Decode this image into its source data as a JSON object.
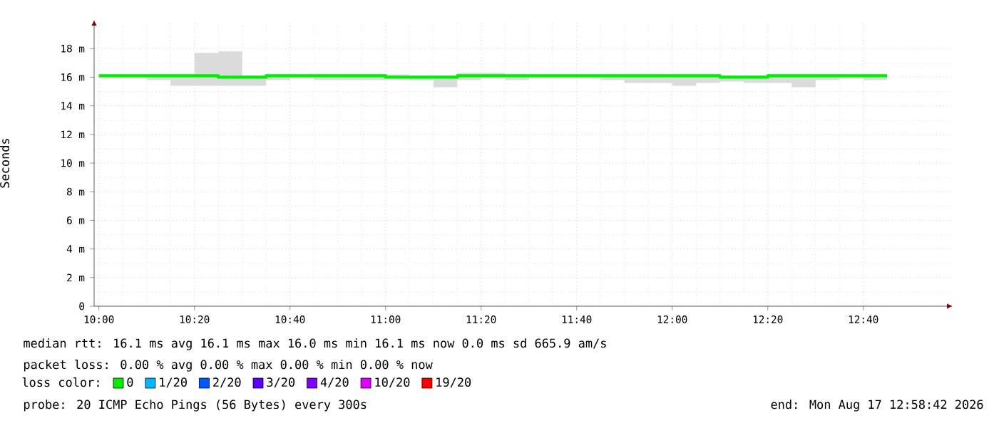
{
  "chart_data": {
    "type": "step",
    "ylabel": "Seconds",
    "legend_title": "loss color:",
    "legend": "bottom",
    "grid": true,
    "x": [
      "2026-08-17T10:00",
      "2026-08-17T10:05",
      "2026-08-17T10:10",
      "2026-08-17T10:15",
      "2026-08-17T10:20",
      "2026-08-17T10:25",
      "2026-08-17T10:30",
      "2026-08-17T10:35",
      "2026-08-17T10:40",
      "2026-08-17T10:45",
      "2026-08-17T10:50",
      "2026-08-17T10:55",
      "2026-08-17T11:00",
      "2026-08-17T11:05",
      "2026-08-17T11:10",
      "2026-08-17T11:15",
      "2026-08-17T11:20",
      "2026-08-17T11:25",
      "2026-08-17T11:30",
      "2026-08-17T11:35",
      "2026-08-17T11:40",
      "2026-08-17T11:45",
      "2026-08-17T11:50",
      "2026-08-17T11:55",
      "2026-08-17T12:00",
      "2026-08-17T12:05",
      "2026-08-17T12:10",
      "2026-08-17T12:15",
      "2026-08-17T12:20",
      "2026-08-17T12:25",
      "2026-08-17T12:30",
      "2026-08-17T12:35",
      "2026-08-17T12:40",
      "2026-08-17T12:45"
    ],
    "series": [
      {
        "name": "0",
        "color": "#00ee00",
        "values": [
          16.1,
          16.1,
          16.1,
          16.1,
          16.1,
          16.0,
          16.0,
          16.1,
          16.1,
          16.1,
          16.1,
          16.1,
          16.0,
          16.0,
          16.0,
          16.1,
          16.1,
          16.1,
          16.1,
          16.1,
          16.1,
          16.1,
          16.1,
          16.1,
          16.1,
          16.1,
          16.0,
          16.0,
          16.1,
          16.1,
          16.1,
          16.1,
          16.1,
          16.1
        ],
        "lower": [
          16.0,
          16.0,
          15.8,
          15.4,
          15.4,
          15.4,
          15.4,
          15.8,
          16.0,
          15.8,
          15.8,
          15.8,
          15.9,
          15.8,
          15.3,
          15.8,
          16.0,
          15.8,
          16.0,
          16.0,
          16.0,
          15.8,
          15.6,
          15.6,
          15.4,
          15.6,
          15.7,
          15.6,
          15.6,
          15.3,
          15.8,
          16.0,
          15.8,
          15.8
        ],
        "upper": [
          16.2,
          16.2,
          16.2,
          16.2,
          17.7,
          17.8,
          16.1,
          16.2,
          16.2,
          16.2,
          16.2,
          16.2,
          16.2,
          16.1,
          16.1,
          16.3,
          16.3,
          16.2,
          16.2,
          16.2,
          16.2,
          16.2,
          16.2,
          16.2,
          16.2,
          16.2,
          16.1,
          16.1,
          16.2,
          16.2,
          16.2,
          16.2,
          16.2,
          17.1
        ]
      },
      {
        "name": "1/20",
        "color": "#00b8ff",
        "values": [
          null,
          null,
          null,
          null,
          null,
          null,
          null,
          null,
          null,
          null,
          null,
          null,
          null,
          null,
          null,
          null,
          null,
          null,
          null,
          null,
          null,
          null,
          null,
          null,
          null,
          null,
          null,
          null,
          null,
          null,
          null,
          null,
          null,
          null
        ]
      },
      {
        "name": "2/20",
        "color": "#0059ff",
        "values": [
          null,
          null,
          null,
          null,
          null,
          null,
          null,
          null,
          null,
          null,
          null,
          null,
          null,
          null,
          null,
          null,
          null,
          null,
          null,
          null,
          null,
          null,
          null,
          null,
          null,
          null,
          null,
          null,
          null,
          null,
          null,
          null,
          null,
          null
        ]
      },
      {
        "name": "3/20",
        "color": "#5e00ff",
        "values": [
          null,
          null,
          null,
          null,
          null,
          null,
          null,
          null,
          null,
          null,
          null,
          null,
          null,
          null,
          null,
          null,
          null,
          null,
          null,
          null,
          null,
          null,
          null,
          null,
          null,
          null,
          null,
          null,
          null,
          null,
          null,
          null,
          null,
          null
        ]
      },
      {
        "name": "4/20",
        "color": "#7e00ff",
        "values": [
          null,
          null,
          null,
          null,
          null,
          null,
          null,
          null,
          null,
          null,
          null,
          null,
          null,
          null,
          null,
          null,
          null,
          null,
          null,
          null,
          null,
          null,
          null,
          null,
          null,
          null,
          null,
          null,
          null,
          null,
          null,
          null,
          null,
          null
        ]
      },
      {
        "name": "10/20",
        "color": "#dd00ff",
        "values": [
          null,
          null,
          null,
          null,
          null,
          null,
          null,
          null,
          null,
          null,
          null,
          null,
          null,
          null,
          null,
          null,
          null,
          null,
          null,
          null,
          null,
          null,
          null,
          null,
          null,
          null,
          null,
          null,
          null,
          null,
          null,
          null,
          null,
          null
        ]
      },
      {
        "name": "19/20",
        "color": "#ff0000",
        "values": [
          null,
          null,
          null,
          null,
          null,
          null,
          null,
          null,
          null,
          null,
          null,
          null,
          null,
          null,
          null,
          null,
          null,
          null,
          null,
          null,
          null,
          null,
          null,
          null,
          null,
          null,
          null,
          null,
          null,
          null,
          null,
          null,
          null,
          null
        ]
      }
    ],
    "xlim": [
      "2026-08-17T09:59",
      "2026-08-17T12:58:42"
    ],
    "xticks": [
      {
        "value": "2026-08-17T10:00",
        "label": "10:00"
      },
      {
        "value": "2026-08-17T10:20",
        "label": "10:20"
      },
      {
        "value": "2026-08-17T10:40",
        "label": "10:40"
      },
      {
        "value": "2026-08-17T11:00",
        "label": "11:00"
      },
      {
        "value": "2026-08-17T11:20",
        "label": "11:20"
      },
      {
        "value": "2026-08-17T11:40",
        "label": "11:40"
      },
      {
        "value": "2026-08-17T12:00",
        "label": "12:00"
      },
      {
        "value": "2026-08-17T12:20",
        "label": "12:20"
      },
      {
        "value": "2026-08-17T12:40",
        "label": "12:40"
      }
    ],
    "ylim": [
      0,
      20
    ],
    "yticks": [
      0,
      {
        "value": 2,
        "label": "2 m"
      },
      {
        "value": 4,
        "label": "4 m"
      },
      {
        "value": 6,
        "label": "6 m"
      },
      {
        "value": 8,
        "label": "8 m"
      },
      {
        "value": 10,
        "label": "10 m"
      },
      {
        "value": 12,
        "label": "12 m"
      },
      {
        "value": 14,
        "label": "14 m"
      },
      {
        "value": 16,
        "label": "16 m"
      },
      {
        "value": 18,
        "label": "18 m"
      }
    ],
    "annotations": [
      "median rtt:  16.1 ms avg  16.1 ms max  16.0 ms min  16.1 ms now  0.0 ms sd  665.9  am/s",
      "packet loss: 0.00 % avg  0.00 % max  0.00 % min  0.00 % now",
      "probe:       20 ICMP Echo Pings (56 Bytes) every 300s",
      "end: Mon Aug 17 12:58:42 2026"
    ]
  }
}
